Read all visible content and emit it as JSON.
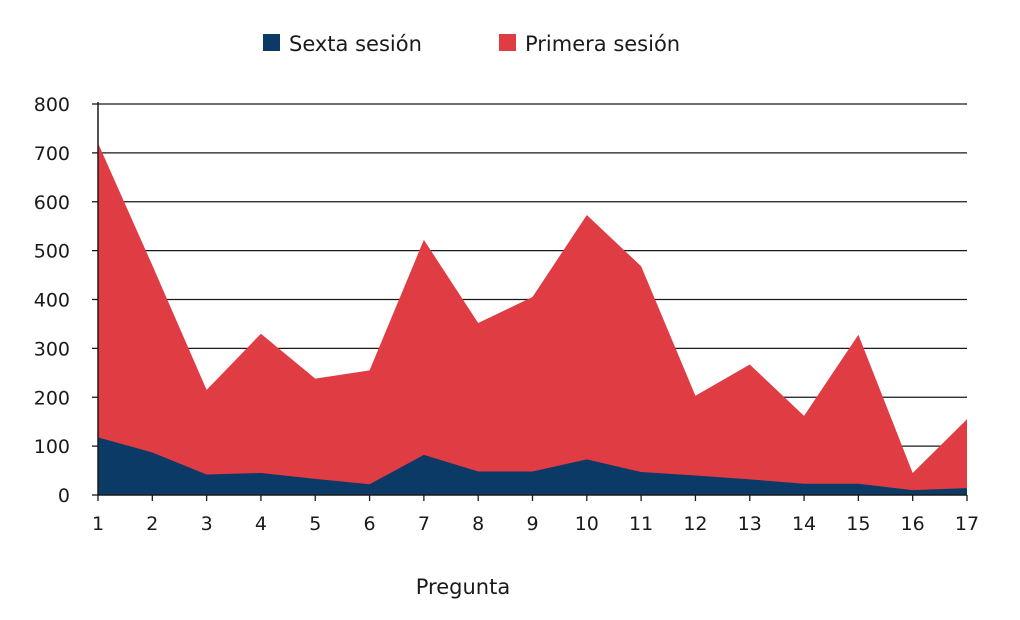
{
  "chart_data": {
    "type": "area",
    "stacked": false,
    "xlabel": "Pregunta",
    "ylabel": "",
    "title": "",
    "categories": [
      "1",
      "2",
      "3",
      "4",
      "5",
      "6",
      "7",
      "8",
      "9",
      "10",
      "11",
      "12",
      "13",
      "14",
      "15",
      "16",
      "17"
    ],
    "ylim": [
      0,
      800
    ],
    "yticks": [
      0,
      100,
      200,
      300,
      400,
      500,
      600,
      700,
      800
    ],
    "grid": true,
    "legend_position": "top-center",
    "series": [
      {
        "name": "Primera sesión",
        "color": "#e03c44",
        "values": [
          720,
          470,
          215,
          330,
          238,
          255,
          522,
          352,
          405,
          573,
          468,
          203,
          267,
          162,
          328,
          45,
          155
        ]
      },
      {
        "name": "Sexta sesión",
        "color": "#0b3a66",
        "values": [
          118,
          87,
          42,
          45,
          33,
          22,
          82,
          48,
          48,
          73,
          47,
          40,
          32,
          23,
          23,
          10,
          14
        ]
      }
    ],
    "legend_order": [
      "Sexta sesión",
      "Primera sesión"
    ]
  }
}
